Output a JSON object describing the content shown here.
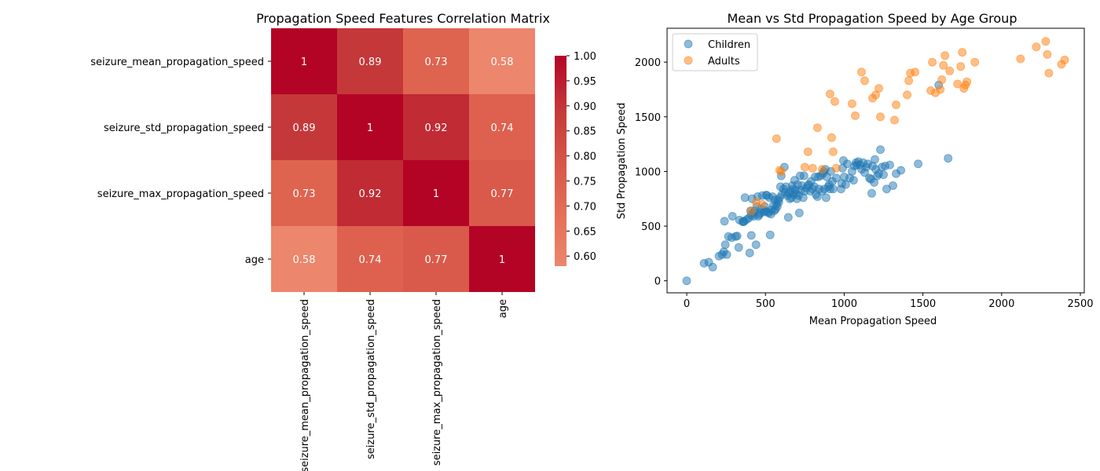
{
  "chart_data": [
    {
      "type": "heatmap",
      "title": "Propagation Speed Features Correlation Matrix",
      "row_labels": [
        "seizure_mean_propagation_speed",
        "seizure_std_propagation_speed",
        "seizure_max_propagation_speed",
        "age"
      ],
      "col_labels": [
        "seizure_mean_propagation_speed",
        "seizure_std_propagation_speed",
        "seizure_max_propagation_speed",
        "age"
      ],
      "values": [
        [
          1,
          0.89,
          0.73,
          0.58
        ],
        [
          0.89,
          1,
          0.92,
          0.74
        ],
        [
          0.73,
          0.92,
          1,
          0.77
        ],
        [
          0.58,
          0.74,
          0.77,
          1
        ]
      ],
      "cell_labels": [
        [
          "1",
          "0.89",
          "0.73",
          "0.58"
        ],
        [
          "0.89",
          "1",
          "0.92",
          "0.74"
        ],
        [
          "0.73",
          "0.92",
          "1",
          "0.77"
        ],
        [
          "0.58",
          "0.74",
          "0.77",
          "1"
        ]
      ],
      "colorbar": {
        "min": 0.58,
        "max": 1.0,
        "ticks": [
          0.6,
          0.65,
          0.7,
          0.75,
          0.8,
          0.85,
          0.9,
          0.95,
          1.0
        ],
        "tick_labels": [
          "0.60",
          "0.65",
          "0.70",
          "0.75",
          "0.80",
          "0.85",
          "0.90",
          "0.95",
          "1.00"
        ],
        "colormap": "coolwarm (upper half)"
      }
    },
    {
      "type": "scatter",
      "title": "Mean vs Std Propagation Speed by Age Group",
      "xlabel": "Mean Propagation Speed",
      "ylabel": "Std Propagation Speed",
      "xlim": [
        -125,
        2525
      ],
      "ylim": [
        -110,
        2310
      ],
      "xticks": [
        0,
        500,
        1000,
        1500,
        2000,
        2500
      ],
      "xtick_labels": [
        "0",
        "500",
        "1000",
        "1500",
        "2000",
        "2500"
      ],
      "yticks": [
        0,
        500,
        1000,
        1500,
        2000
      ],
      "ytick_labels": [
        "0",
        "500",
        "1000",
        "1500",
        "2000"
      ],
      "grid": false,
      "legend": "top-left",
      "series": [
        {
          "name": "Children",
          "color": "#1f77b4",
          "points": [
            [
              0,
              0
            ],
            [
              110,
              160
            ],
            [
              140,
              170
            ],
            [
              165,
              125
            ],
            [
              205,
              225
            ],
            [
              225,
              240
            ],
            [
              235,
              265
            ],
            [
              245,
              330
            ],
            [
              240,
              545
            ],
            [
              255,
              240
            ],
            [
              265,
              405
            ],
            [
              285,
              395
            ],
            [
              290,
              590
            ],
            [
              310,
              405
            ],
            [
              320,
              410
            ],
            [
              330,
              305
            ],
            [
              335,
              555
            ],
            [
              355,
              540
            ],
            [
              360,
              540
            ],
            [
              365,
              545
            ],
            [
              370,
              760
            ],
            [
              380,
              560
            ],
            [
              395,
              575
            ],
            [
              400,
              255
            ],
            [
              405,
              640
            ],
            [
              410,
              415
            ],
            [
              410,
              600
            ],
            [
              415,
              750
            ],
            [
              420,
              620
            ],
            [
              425,
              590
            ],
            [
              430,
              640
            ],
            [
              440,
              330
            ],
            [
              445,
              680
            ],
            [
              450,
              770
            ],
            [
              455,
              590
            ],
            [
              460,
              605
            ],
            [
              470,
              620
            ],
            [
              470,
              655
            ],
            [
              480,
              780
            ],
            [
              490,
              630
            ],
            [
              495,
              680
            ],
            [
              500,
              640
            ],
            [
              505,
              785
            ],
            [
              510,
              780
            ],
            [
              515,
              630
            ],
            [
              520,
              620
            ],
            [
              525,
              760
            ],
            [
              530,
              420
            ],
            [
              535,
              610
            ],
            [
              540,
              650
            ],
            [
              545,
              770
            ],
            [
              550,
              690
            ],
            [
              555,
              640
            ],
            [
              560,
              740
            ],
            [
              565,
              655
            ],
            [
              570,
              700
            ],
            [
              575,
              680
            ],
            [
              580,
              740
            ],
            [
              585,
              720
            ],
            [
              590,
              760
            ],
            [
              595,
              860
            ],
            [
              600,
              960
            ],
            [
              605,
              790
            ],
            [
              615,
              840
            ],
            [
              620,
              1040
            ],
            [
              625,
              810
            ],
            [
              630,
              860
            ],
            [
              640,
              780
            ],
            [
              645,
              580
            ],
            [
              650,
              800
            ],
            [
              655,
              750
            ],
            [
              660,
              820
            ],
            [
              665,
              760
            ],
            [
              670,
              870
            ],
            [
              675,
              840
            ],
            [
              680,
              790
            ],
            [
              685,
              920
            ],
            [
              690,
              830
            ],
            [
              695,
              800
            ],
            [
              700,
              750
            ],
            [
              705,
              880
            ],
            [
              710,
              780
            ],
            [
              715,
              620
            ],
            [
              720,
              960
            ],
            [
              725,
              830
            ],
            [
              730,
              870
            ],
            [
              740,
              760
            ],
            [
              745,
              960
            ],
            [
              750,
              820
            ],
            [
              760,
              850
            ],
            [
              770,
              870
            ],
            [
              775,
              880
            ],
            [
              785,
              820
            ],
            [
              790,
              910
            ],
            [
              800,
              840
            ],
            [
              810,
              860
            ],
            [
              815,
              950
            ],
            [
              820,
              790
            ],
            [
              830,
              770
            ],
            [
              835,
              950
            ],
            [
              840,
              840
            ],
            [
              850,
              960
            ],
            [
              860,
              820
            ],
            [
              865,
              980
            ],
            [
              870,
              1000
            ],
            [
              875,
              840
            ],
            [
              880,
              1020
            ],
            [
              885,
              760
            ],
            [
              890,
              950
            ],
            [
              900,
              860
            ],
            [
              905,
              880
            ],
            [
              910,
              840
            ],
            [
              915,
              1000
            ],
            [
              925,
              910
            ],
            [
              930,
              840
            ],
            [
              950,
              940
            ],
            [
              980,
              840
            ],
            [
              985,
              890
            ],
            [
              990,
              1030
            ],
            [
              995,
              1100
            ],
            [
              1000,
              950
            ],
            [
              1010,
              880
            ],
            [
              1020,
              1070
            ],
            [
              1035,
              940
            ],
            [
              1050,
              1000
            ],
            [
              1060,
              920
            ],
            [
              1065,
              1050
            ],
            [
              1075,
              1080
            ],
            [
              1080,
              1060
            ],
            [
              1090,
              1090
            ],
            [
              1100,
              1060
            ],
            [
              1110,
              1020
            ],
            [
              1120,
              1080
            ],
            [
              1130,
              990
            ],
            [
              1140,
              1040
            ],
            [
              1150,
              1070
            ],
            [
              1160,
              940
            ],
            [
              1170,
              930
            ],
            [
              1175,
              800
            ],
            [
              1180,
              1050
            ],
            [
              1190,
              900
            ],
            [
              1195,
              1110
            ],
            [
              1200,
              1020
            ],
            [
              1210,
              960
            ],
            [
              1220,
              980
            ],
            [
              1230,
              1200
            ],
            [
              1240,
              1040
            ],
            [
              1250,
              970
            ],
            [
              1260,
              1050
            ],
            [
              1270,
              840
            ],
            [
              1290,
              1060
            ],
            [
              1310,
              870
            ],
            [
              1330,
              980
            ],
            [
              1360,
              1010
            ],
            [
              1470,
              1070
            ],
            [
              1600,
              1790
            ],
            [
              1660,
              1120
            ]
          ]
        },
        {
          "name": "Adults",
          "color": "#ff7f0e",
          "points": [
            [
              410,
              640
            ],
            [
              440,
              720
            ],
            [
              480,
              700
            ],
            [
              570,
              1300
            ],
            [
              590,
              1010
            ],
            [
              600,
              1000
            ],
            [
              750,
              1040
            ],
            [
              770,
              1180
            ],
            [
              800,
              1030
            ],
            [
              830,
              1400
            ],
            [
              860,
              1020
            ],
            [
              910,
              1710
            ],
            [
              920,
              1310
            ],
            [
              930,
              1180
            ],
            [
              940,
              1640
            ],
            [
              950,
              1030
            ],
            [
              1050,
              1620
            ],
            [
              1070,
              1510
            ],
            [
              1110,
              1910
            ],
            [
              1130,
              1830
            ],
            [
              1180,
              1670
            ],
            [
              1200,
              1700
            ],
            [
              1220,
              1760
            ],
            [
              1230,
              1500
            ],
            [
              1320,
              1470
            ],
            [
              1330,
              1610
            ],
            [
              1400,
              1700
            ],
            [
              1410,
              1830
            ],
            [
              1420,
              1900
            ],
            [
              1450,
              1910
            ],
            [
              1550,
              1740
            ],
            [
              1560,
              2000
            ],
            [
              1580,
              1720
            ],
            [
              1610,
              1750
            ],
            [
              1620,
              1840
            ],
            [
              1630,
              1970
            ],
            [
              1640,
              2060
            ],
            [
              1670,
              1920
            ],
            [
              1720,
              1800
            ],
            [
              1740,
              1960
            ],
            [
              1750,
              2090
            ],
            [
              1760,
              1760
            ],
            [
              1770,
              1790
            ],
            [
              1780,
              1820
            ],
            [
              1830,
              2000
            ],
            [
              2120,
              2030
            ],
            [
              2220,
              2140
            ],
            [
              2280,
              2190
            ],
            [
              2290,
              2070
            ],
            [
              2300,
              1900
            ],
            [
              2380,
              1980
            ],
            [
              2400,
              2020
            ]
          ]
        }
      ]
    }
  ]
}
